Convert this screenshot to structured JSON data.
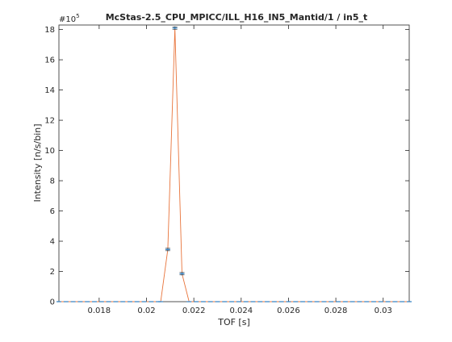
{
  "chart_data": {
    "type": "line",
    "title": "McStas-2.5_CPU_MPICC/ILL_H16_IN5_Mantid/1 / in5_t",
    "xlabel": "TOF [s]",
    "ylabel": "Intensity [n/s/bin]",
    "y_multiplier_label": "#10",
    "y_multiplier_exponent": "5",
    "xlim": [
      0.0163,
      0.0311
    ],
    "ylim": [
      0,
      18.3
    ],
    "x_ticks": [
      0.018,
      0.02,
      0.022,
      0.024,
      0.026,
      0.028,
      0.03
    ],
    "x_tick_labels": [
      "0.018",
      "0.02",
      "0.022",
      "0.024",
      "0.026",
      "0.028",
      "0.03"
    ],
    "y_ticks": [
      0,
      2,
      4,
      6,
      8,
      10,
      12,
      14,
      16,
      18
    ],
    "y_tick_labels": [
      "0",
      "2",
      "4",
      "6",
      "8",
      "10",
      "12",
      "14",
      "16",
      "18"
    ],
    "grid": false,
    "series": [
      {
        "name": "in5_t",
        "color": "#e8743b",
        "x": [
          0.0163,
          0.0166,
          0.0169,
          0.0172,
          0.0175,
          0.0178,
          0.0181,
          0.0184,
          0.0187,
          0.019,
          0.0193,
          0.0196,
          0.0199,
          0.0202,
          0.0205,
          0.0206,
          0.0209,
          0.0212,
          0.0215,
          0.0218,
          0.0221,
          0.0224,
          0.0227,
          0.023,
          0.0233,
          0.0236,
          0.0239,
          0.0242,
          0.0245,
          0.0248,
          0.0251,
          0.0254,
          0.0257,
          0.026,
          0.0263,
          0.0266,
          0.0269,
          0.0272,
          0.0275,
          0.0278,
          0.0281,
          0.0284,
          0.0287,
          0.029,
          0.0293,
          0.0296,
          0.0299,
          0.0302,
          0.0305,
          0.0308,
          0.0311
        ],
        "y": [
          0,
          0,
          0,
          0,
          0,
          0,
          0,
          0,
          0,
          0,
          0,
          0,
          0,
          0,
          0,
          0,
          3.45,
          18.1,
          1.85,
          0,
          0,
          0,
          0,
          0,
          0,
          0,
          0,
          0,
          0,
          0,
          0,
          0,
          0,
          0,
          0,
          0,
          0,
          0,
          0,
          0,
          0,
          0,
          0,
          0,
          0,
          0,
          0,
          0,
          0,
          0,
          0
        ],
        "errorbar_color": "#2f7fc1"
      }
    ]
  }
}
